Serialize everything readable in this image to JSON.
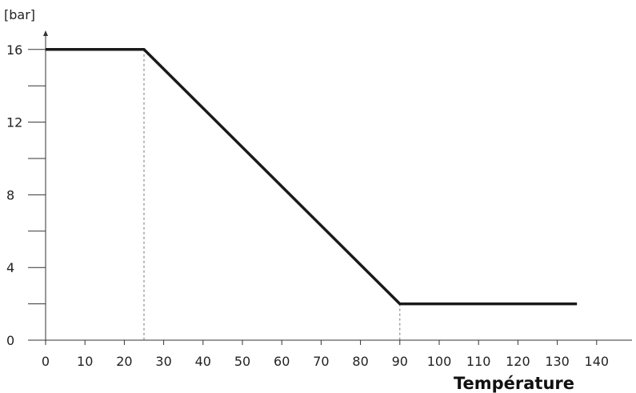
{
  "chart_data": {
    "type": "line",
    "ylabel": "[bar]",
    "xlabel": "Température",
    "xlim": [
      0,
      140
    ],
    "ylim": [
      0,
      16
    ],
    "x_ticks": [
      0,
      10,
      20,
      30,
      40,
      50,
      60,
      70,
      80,
      90,
      100,
      110,
      120,
      130,
      140
    ],
    "y_ticks_labeled": [
      0,
      4,
      8,
      12,
      16
    ],
    "y_ticks_minor": [
      2,
      6,
      10,
      14
    ],
    "grid": false,
    "reference_lines_x": [
      25,
      90
    ],
    "series": [
      {
        "x": [
          0,
          25,
          90,
          135
        ],
        "y": [
          16,
          16,
          2,
          2
        ],
        "color": "#1a1a1a"
      }
    ]
  }
}
